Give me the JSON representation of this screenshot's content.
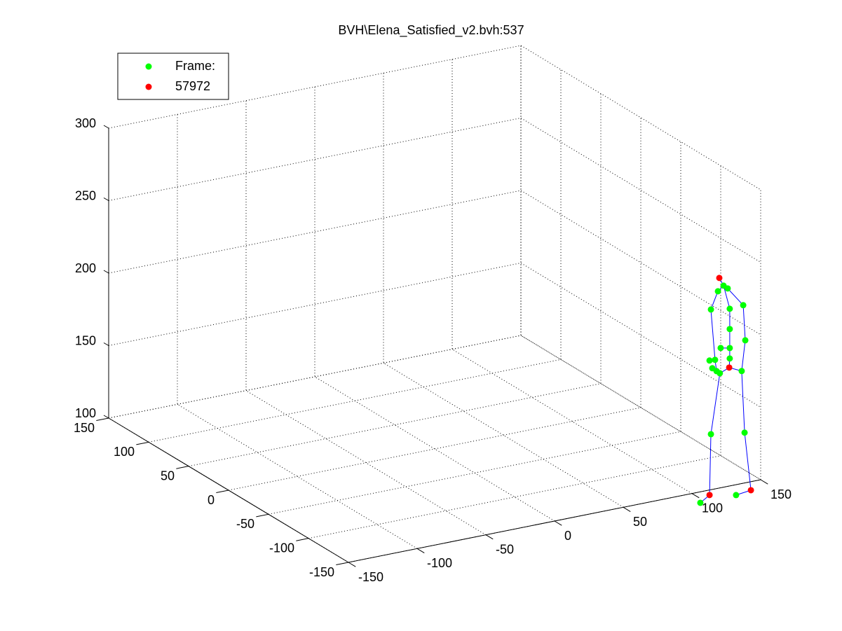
{
  "chart_data": {
    "type": "scatter3d",
    "title": "BVH\\Elena_Satisfied_v2.bvh:537",
    "xlim": [
      -150,
      150
    ],
    "ylim": [
      -150,
      150
    ],
    "zlim": [
      100,
      300
    ],
    "xticks": [
      -150,
      -100,
      -50,
      0,
      50,
      100,
      150
    ],
    "yticks": [
      -150,
      -100,
      -50,
      0,
      50,
      100,
      150
    ],
    "zticks": [
      100,
      150,
      200,
      250,
      300
    ],
    "grid": true,
    "legend": "upper left",
    "series": [
      {
        "name": "Frame:",
        "color": "#00ff00",
        "mode": "markers",
        "x": [
          125.9,
          121.8,
          128.9,
          116.7,
          130.4,
          140.2,
          130.4,
          141.7,
          123.8,
          130.4,
          130.4,
          139.1,
          115.7,
          119.7,
          117.7,
          120.8,
          123.2,
          116.7,
          141.2,
          109.0,
          135.0
        ],
        "y": [
          -145,
          -145,
          -145,
          -145,
          -145,
          -145,
          -145,
          -145,
          -145,
          -145,
          -145,
          -145,
          -145,
          -145,
          -145,
          -145,
          -145,
          -145,
          -145,
          -145,
          -145
        ],
        "z": [
          236.8,
          233.7,
          234.3,
          222.1,
          220.0,
          220.6,
          206.0,
          196.1,
          194.2,
          192.9,
          185.7,
          175.4,
          187.1,
          186.8,
          181.4,
          178.8,
          176.9,
          136.1,
          132.5,
          90.2,
          90.6
        ]
      },
      {
        "name": "57972",
        "color": "#ff0000",
        "mode": "markers",
        "x": [
          122.8,
          130.0,
          115.7,
          145.8
        ],
        "y": [
          -145,
          -145,
          -145,
          -145
        ],
        "z": [
          242.7,
          179.5,
          94.3,
          91.9
        ]
      },
      {
        "color": "#0000ff",
        "mode": "lines",
        "x": [
          122.8,
          125.9,
          130.4,
          130.4,
          130.4,
          130.4,
          130.0,
          null,
          125.9,
          121.8,
          116.7,
          119.7,
          120.8,
          null,
          125.9,
          128.9,
          140.2,
          141.7,
          139.1,
          null,
          130.0,
          139.1,
          141.2,
          145.8,
          135.0,
          null,
          130.0,
          123.2,
          116.7,
          115.7,
          109.0,
          null,
          123.8,
          130.4
        ],
        "y": [
          -145,
          -145,
          -145,
          -145,
          -145,
          -145,
          -145,
          null,
          -145,
          -145,
          -145,
          -145,
          -145,
          null,
          -145,
          -145,
          -145,
          -145,
          -145,
          null,
          -145,
          -145,
          -145,
          -145,
          -145,
          null,
          -145,
          -145,
          -145,
          -145,
          -145,
          null,
          -145,
          -145
        ],
        "z": [
          242.7,
          236.8,
          220.0,
          206.0,
          192.9,
          185.7,
          179.5,
          null,
          236.8,
          233.7,
          222.1,
          186.8,
          178.8,
          null,
          236.8,
          234.3,
          220.6,
          196.1,
          175.4,
          null,
          179.5,
          175.4,
          132.5,
          91.9,
          90.6,
          null,
          179.5,
          176.9,
          136.1,
          94.3,
          90.2,
          null,
          194.2,
          192.9
        ]
      }
    ]
  }
}
